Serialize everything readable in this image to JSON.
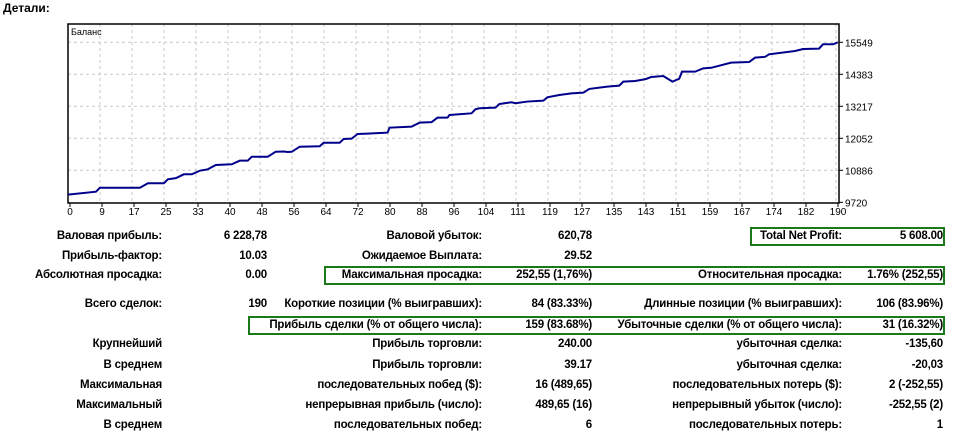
{
  "section_title": "Детали:",
  "chart_data": {
    "type": "line",
    "title": "Баланс",
    "xlabel": "",
    "ylabel": "",
    "xlim": [
      0,
      193
    ],
    "ylim": [
      9720,
      15549
    ],
    "grid": true,
    "x_ticks": [
      "0",
      "9",
      "17",
      "25",
      "33",
      "40",
      "48",
      "56",
      "64",
      "72",
      "80",
      "88",
      "96",
      "104",
      "111",
      "119",
      "127",
      "135",
      "143",
      "151",
      "159",
      "167",
      "174",
      "182",
      "190"
    ],
    "y_ticks": [
      "15549",
      "14383",
      "13217",
      "12052",
      "10886",
      "9720"
    ],
    "line_color": "#00008b",
    "series": [
      {
        "name": "Баланс",
        "points": [
          [
            0,
            10000
          ],
          [
            7,
            10106
          ],
          [
            8,
            10252
          ],
          [
            18,
            10252
          ],
          [
            20,
            10412
          ],
          [
            24,
            10412
          ],
          [
            25,
            10558
          ],
          [
            27,
            10600
          ],
          [
            29,
            10740
          ],
          [
            31,
            10740
          ],
          [
            33,
            10872
          ],
          [
            35,
            10922
          ],
          [
            37,
            11079
          ],
          [
            41,
            11104
          ],
          [
            43,
            11236
          ],
          [
            45,
            11236
          ],
          [
            46,
            11381
          ],
          [
            50,
            11381
          ],
          [
            52,
            11563
          ],
          [
            54,
            11570
          ],
          [
            55,
            11552
          ],
          [
            56,
            11560
          ],
          [
            58,
            11745
          ],
          [
            63,
            11760
          ],
          [
            64,
            11891
          ],
          [
            68,
            11891
          ],
          [
            69,
            12026
          ],
          [
            71,
            12040
          ],
          [
            72.5,
            12208
          ],
          [
            75,
            12220
          ],
          [
            80,
            12260
          ],
          [
            80.5,
            12439
          ],
          [
            86,
            12475
          ],
          [
            88,
            12621
          ],
          [
            91,
            12640
          ],
          [
            92.5,
            12803
          ],
          [
            95,
            12803
          ],
          [
            95.5,
            12901
          ],
          [
            101,
            12962
          ],
          [
            102,
            13108
          ],
          [
            103,
            13145
          ],
          [
            107,
            13167
          ],
          [
            108,
            13302
          ],
          [
            111,
            13363
          ],
          [
            112,
            13330
          ],
          [
            115,
            13390
          ],
          [
            119,
            13423
          ],
          [
            120,
            13545
          ],
          [
            123,
            13629
          ],
          [
            126,
            13690
          ],
          [
            129,
            13715
          ],
          [
            130.5,
            13850
          ],
          [
            133,
            13897
          ],
          [
            135,
            13933
          ],
          [
            138,
            13970
          ],
          [
            139,
            14116
          ],
          [
            142,
            14140
          ],
          [
            144.7,
            14213
          ],
          [
            146,
            14286
          ],
          [
            149,
            14322
          ],
          [
            151.3,
            14116
          ],
          [
            153,
            14220
          ],
          [
            153.7,
            14480
          ],
          [
            157,
            14480
          ],
          [
            159,
            14600
          ],
          [
            161,
            14620
          ],
          [
            166,
            14808
          ],
          [
            170.5,
            14830
          ],
          [
            172,
            14990
          ],
          [
            174.5,
            15020
          ],
          [
            175.5,
            15112
          ],
          [
            182,
            15231
          ],
          [
            184,
            15304
          ],
          [
            188,
            15320
          ],
          [
            189,
            15476
          ],
          [
            191.5,
            15476
          ],
          [
            192.7,
            15549
          ]
        ]
      }
    ]
  },
  "stats": [
    [
      {
        "t": "Валовая прибыль:",
        "c": "c1"
      },
      {
        "t": "6 228,78",
        "c": "c2"
      },
      {
        "t": "Валовой убыток:",
        "c": "c3"
      },
      {
        "t": "620,78",
        "c": "c4"
      },
      {
        "t": "Total Net Profit:",
        "c": "c5"
      },
      {
        "t": "5 608.00",
        "c": "c6"
      }
    ],
    [
      {
        "t": "Прибыль-фактор:",
        "c": "c1"
      },
      {
        "t": "10.03",
        "c": "c2"
      },
      {
        "t": "Ожидаемое Выплата:",
        "c": "c3"
      },
      {
        "t": "29.52",
        "c": "c4"
      }
    ],
    [
      {
        "t": "Абсолютная просадка:",
        "c": "c1"
      },
      {
        "t": "0.00",
        "c": "c2"
      },
      {
        "t": "Максимальная просадка:",
        "c": "c3"
      },
      {
        "t": "252,55 (1,76%)",
        "c": "c4"
      },
      {
        "t": "Относительная просадка:",
        "c": "c5"
      },
      {
        "t": "1.76% (252,55)",
        "c": "c6"
      }
    ],
    [
      {
        "t": "Всего сделок:",
        "c": "c1"
      },
      {
        "t": "190",
        "c": "c2"
      },
      {
        "t": "Короткие позиции (% выигравших):",
        "c": "c3"
      },
      {
        "t": "84 (83.33%)",
        "c": "c4"
      },
      {
        "t": "Длинные позиции (% выигравших):",
        "c": "c5"
      },
      {
        "t": "106 (83.96%)",
        "c": "c6"
      }
    ],
    [
      {
        "t": "Прибыль сделки (% от общего числа):",
        "c": "c3"
      },
      {
        "t": "159 (83.68%)",
        "c": "c4"
      },
      {
        "t": "Убыточные сделки (% от общего числа):",
        "c": "c5"
      },
      {
        "t": "31 (16.32%)",
        "c": "c6"
      }
    ],
    [
      {
        "t": "Крупнейший",
        "c": "c1"
      },
      {
        "t": "Прибыль торговли:",
        "c": "c3"
      },
      {
        "t": "240.00",
        "c": "c4"
      },
      {
        "t": "убыточная сделка:",
        "c": "c5"
      },
      {
        "t": "-135,60",
        "c": "c6"
      }
    ],
    [
      {
        "t": "В среднем",
        "c": "c1"
      },
      {
        "t": "Прибыль торговли:",
        "c": "c3"
      },
      {
        "t": "39.17",
        "c": "c4"
      },
      {
        "t": "убыточная сделка:",
        "c": "c5"
      },
      {
        "t": "-20,03",
        "c": "c6"
      }
    ],
    [
      {
        "t": "Максимальная",
        "c": "c1"
      },
      {
        "t": "последовательных побед ($):",
        "c": "c3"
      },
      {
        "t": "16 (489,65)",
        "c": "c4"
      },
      {
        "t": "последовательных потерь ($):",
        "c": "c5"
      },
      {
        "t": "2 (-252,55)",
        "c": "c6"
      }
    ],
    [
      {
        "t": "Максимальный",
        "c": "c1"
      },
      {
        "t": "непрерывная прибыль (число):",
        "c": "c3"
      },
      {
        "t": "489,65 (16)",
        "c": "c4"
      },
      {
        "t": "непрерывный убыток (число):",
        "c": "c5"
      },
      {
        "t": "-252,55 (2)",
        "c": "c6"
      }
    ],
    [
      {
        "t": "В среднем",
        "c": "c1"
      },
      {
        "t": "последовательных побед:",
        "c": "c3"
      },
      {
        "t": "6",
        "c": "c4"
      },
      {
        "t": "последовательных потерь:",
        "c": "c5"
      },
      {
        "t": "1",
        "c": "c6"
      }
    ]
  ],
  "highlight_color": "#1a7a1a"
}
